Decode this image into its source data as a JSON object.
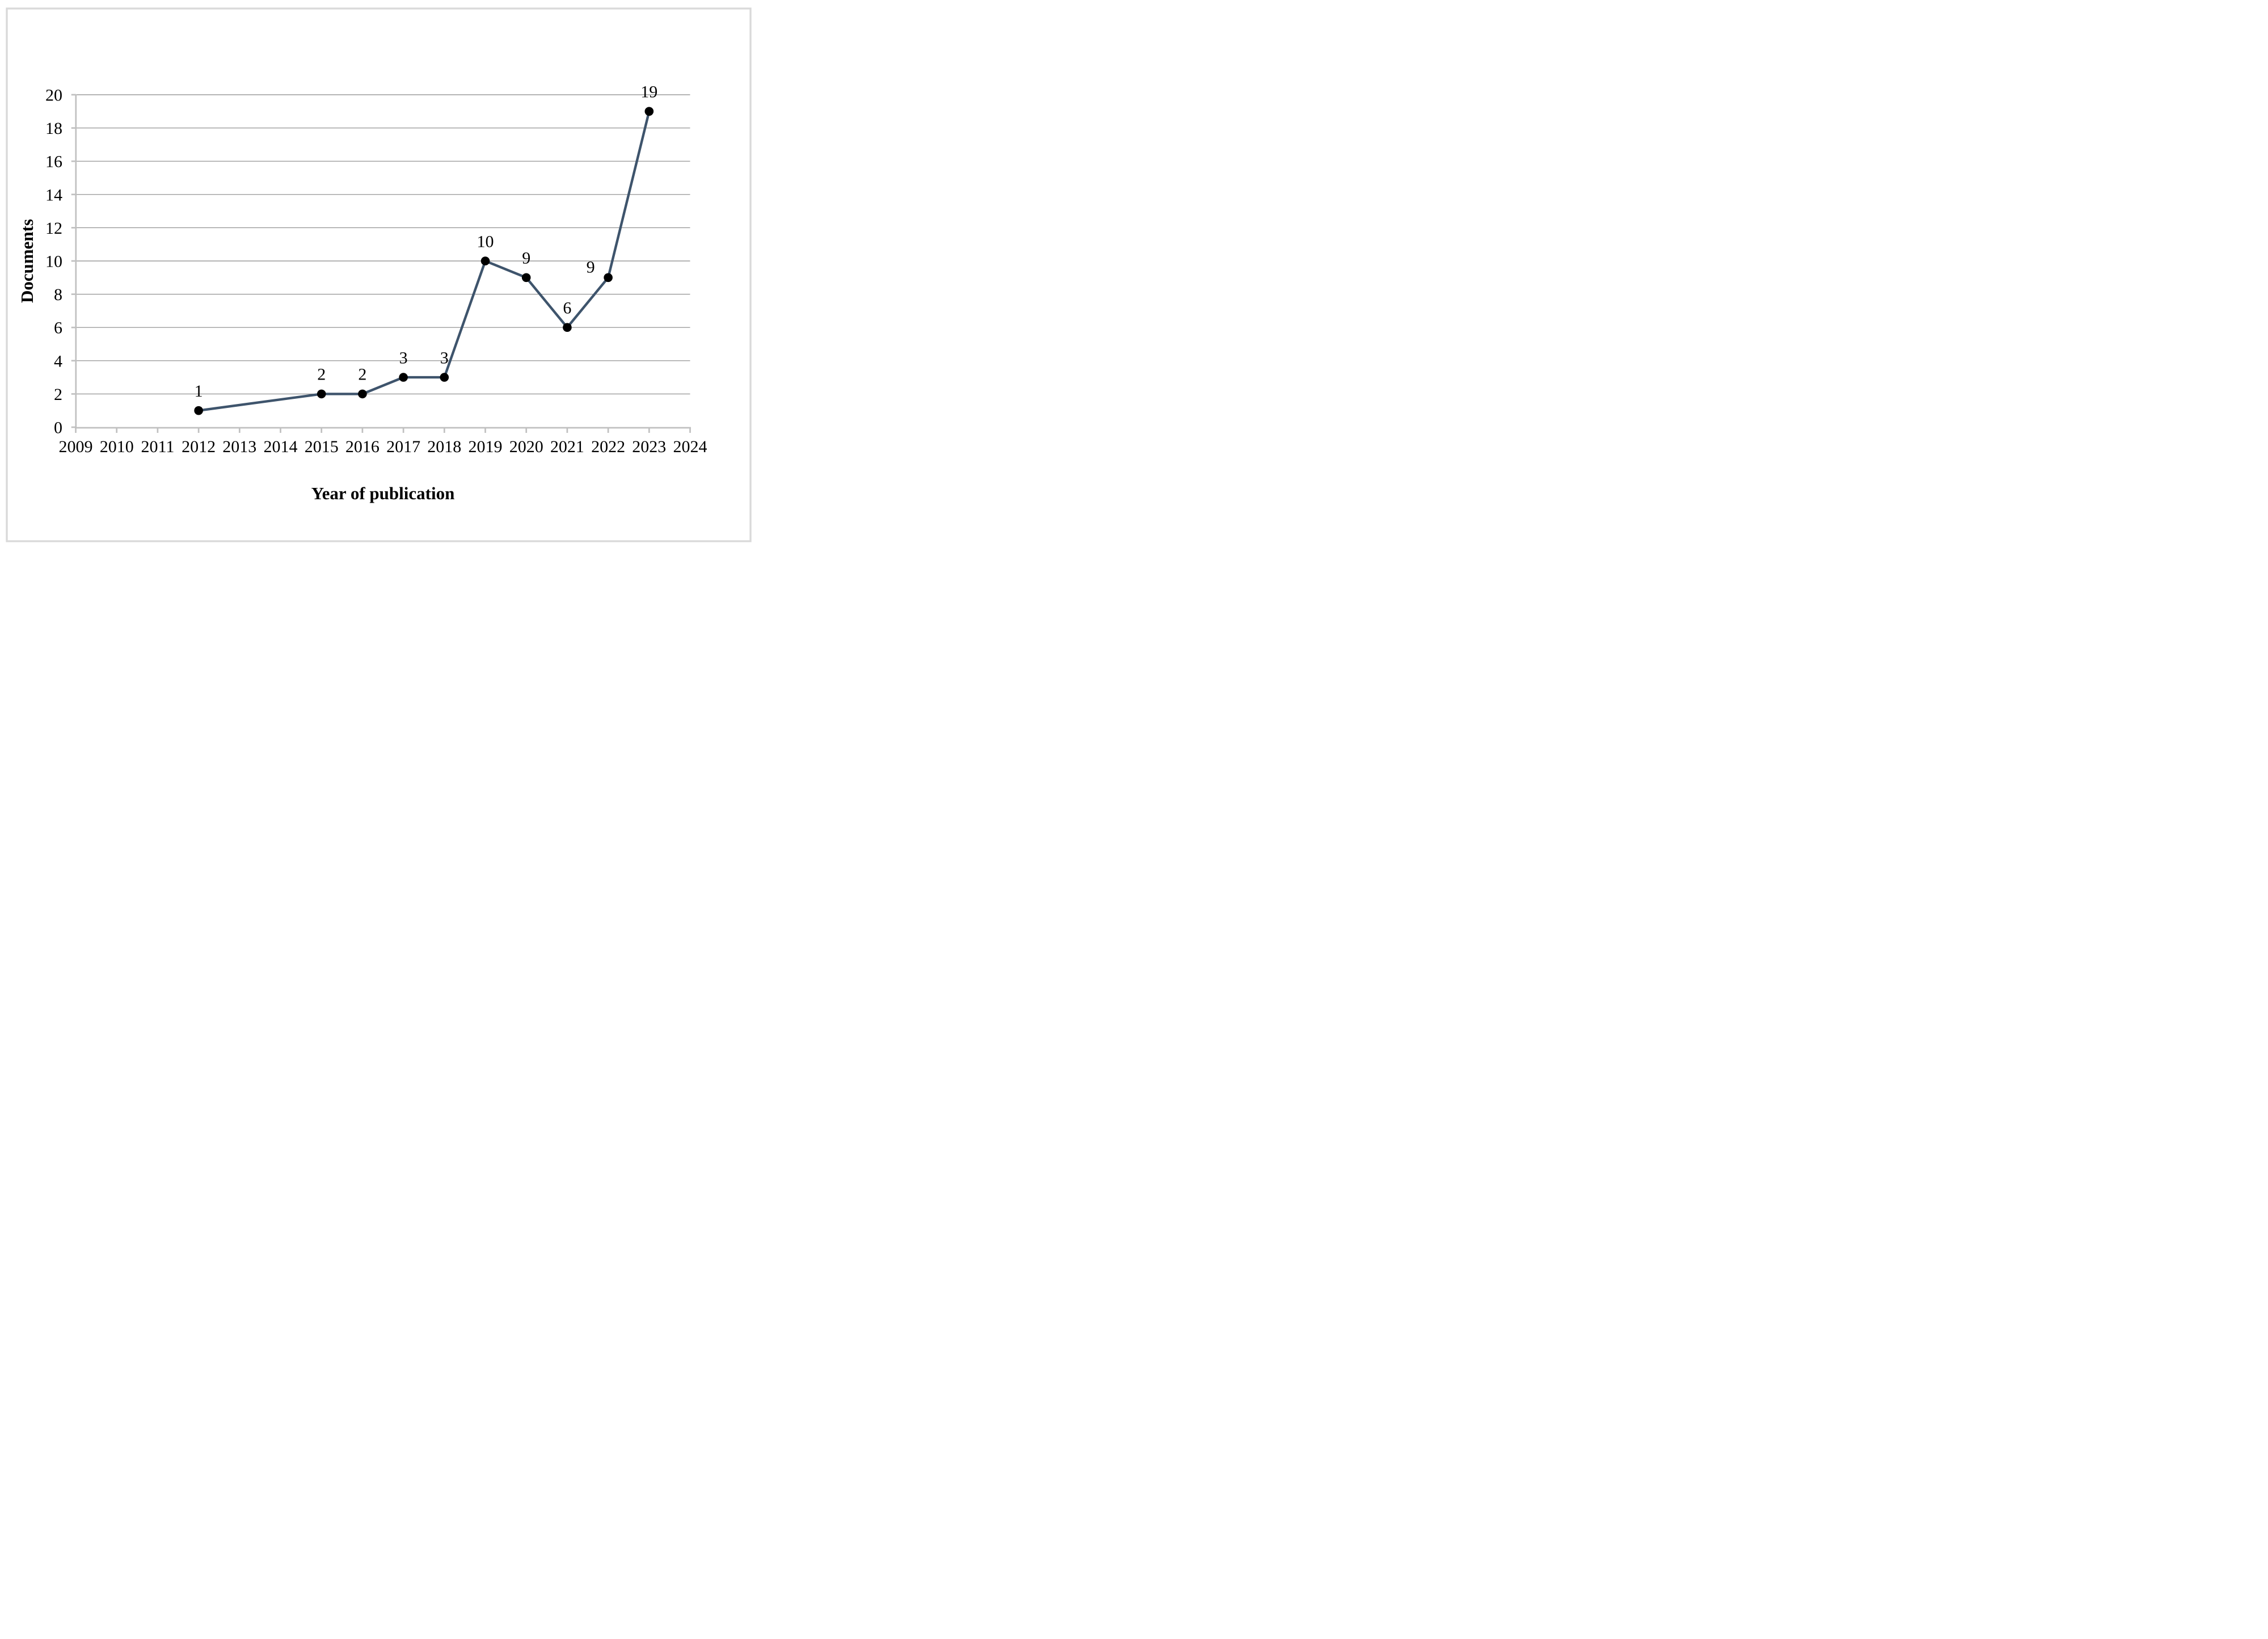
{
  "chart_data": {
    "type": "line",
    "title": "",
    "xlabel": "Year of publication",
    "ylabel": "Documents",
    "categories": [
      "2009",
      "2010",
      "2011",
      "2012",
      "2013",
      "2014",
      "2015",
      "2016",
      "2017",
      "2018",
      "2019",
      "2020",
      "2021",
      "2022",
      "2023",
      "2024"
    ],
    "series": [
      {
        "name": "Documents",
        "points": [
          {
            "year": "2012",
            "value": 1,
            "label": "1"
          },
          {
            "year": "2015",
            "value": 2,
            "label": "2"
          },
          {
            "year": "2016",
            "value": 2,
            "label": "2"
          },
          {
            "year": "2017",
            "value": 3,
            "label": "3"
          },
          {
            "year": "2018",
            "value": 3,
            "label": "3"
          },
          {
            "year": "2019",
            "value": 10,
            "label": "10"
          },
          {
            "year": "2020",
            "value": 9,
            "label": "9"
          },
          {
            "year": "2021",
            "value": 6,
            "label": "6"
          },
          {
            "year": "2022",
            "value": 9,
            "label": "9",
            "label_dx": -31,
            "label_dy": 16
          },
          {
            "year": "2023",
            "value": 19,
            "label": "19"
          }
        ]
      }
    ],
    "y_axis": {
      "min": 0,
      "max": 20,
      "step": 2,
      "tick_labels": [
        "0",
        "2",
        "4",
        "6",
        "8",
        "10",
        "12",
        "14",
        "16",
        "18",
        "20"
      ]
    },
    "x_axis": {
      "tick_labels": [
        "2009",
        "2010",
        "2011",
        "2012",
        "2013",
        "2014",
        "2015",
        "2016",
        "2017",
        "2018",
        "2019",
        "2020",
        "2021",
        "2022",
        "2023",
        "2024"
      ]
    },
    "grid": true,
    "legend": false,
    "layout_hints": {
      "gridlines": "horizontal-only",
      "markers": "filled-circle",
      "labels_position": "above"
    },
    "colors": {
      "line": "#3E546C",
      "marker": "#000000",
      "gridline": "#888888",
      "axis": "#C0C0C0",
      "text": "#000000",
      "border": "#D9D9D9",
      "background": "#FFFFFF"
    }
  }
}
